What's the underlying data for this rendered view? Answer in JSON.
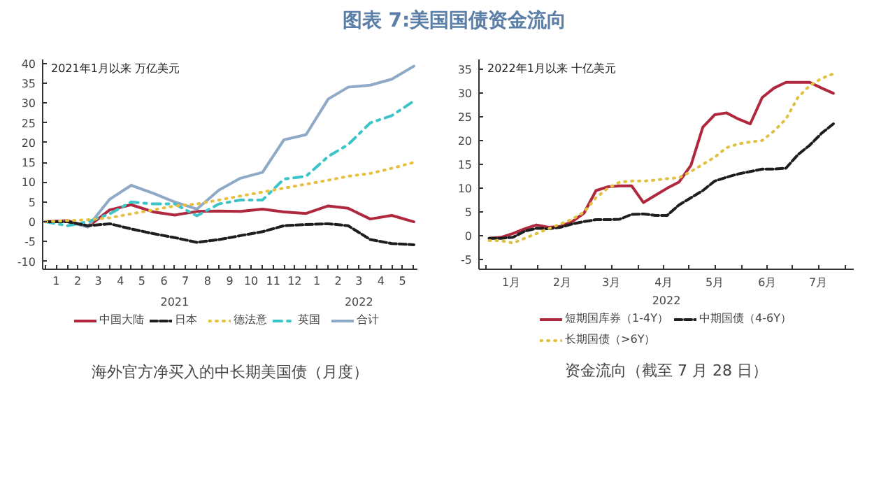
{
  "chart_data": [
    {
      "type": "line",
      "title": "图表 7:美国国债资金流向",
      "ylabel": "2021年1月以来 万亿美元",
      "annotations": [
        "海外官方净买入的中长期美国债（月度）"
      ],
      "x2lim": [
        "2020-12-28",
        "2022-06-06"
      ],
      "x2ticks": [
        {
          "value": "2021-07-01",
          "label": "2021"
        },
        {
          "value": "2022-03-16",
          "label": "2022"
        }
      ],
      "x": [
        "2021-01-01",
        "2021-02-01",
        "2021-03-01",
        "2021-04-01",
        "2021-05-01",
        "2021-06-01",
        "2021-07-01",
        "2021-08-01",
        "2021-09-01",
        "2021-10-01",
        "2021-11-01",
        "2021-12-01",
        "2022-01-01",
        "2022-02-01",
        "2022-03-01",
        "2022-04-01",
        "2022-05-01",
        "2022-06-01"
      ],
      "xlim": [
        "2020-12-28",
        "2022-06-06"
      ],
      "xticks": [
        {
          "value": "2021-01-01",
          "label": null
        },
        {
          "value": "2021-01-16",
          "label": "1"
        },
        {
          "value": "2021-02-01",
          "label": null
        },
        {
          "value": "2021-02-15",
          "label": "2"
        },
        {
          "value": "2021-03-01",
          "label": null
        },
        {
          "value": "2021-03-16",
          "label": "3"
        },
        {
          "value": "2021-04-01",
          "label": null
        },
        {
          "value": "2021-04-16",
          "label": "4"
        },
        {
          "value": "2021-05-01",
          "label": null
        },
        {
          "value": "2021-05-16",
          "label": "5"
        },
        {
          "value": "2021-06-01",
          "label": null
        },
        {
          "value": "2021-06-16",
          "label": "6"
        },
        {
          "value": "2021-07-01",
          "label": null
        },
        {
          "value": "2021-07-16",
          "label": "7"
        },
        {
          "value": "2021-08-01",
          "label": null
        },
        {
          "value": "2021-08-16",
          "label": "8"
        },
        {
          "value": "2021-09-01",
          "label": null
        },
        {
          "value": "2021-09-16",
          "label": "9"
        },
        {
          "value": "2021-10-01",
          "label": null
        },
        {
          "value": "2021-10-16",
          "label": "10"
        },
        {
          "value": "2021-11-01",
          "label": null
        },
        {
          "value": "2021-11-16",
          "label": "11"
        },
        {
          "value": "2021-12-01",
          "label": null
        },
        {
          "value": "2021-12-16",
          "label": "12"
        },
        {
          "value": "2022-01-01",
          "label": null
        },
        {
          "value": "2022-01-16",
          "label": "1"
        },
        {
          "value": "2022-02-01",
          "label": null
        },
        {
          "value": "2022-02-15",
          "label": "2"
        },
        {
          "value": "2022-03-01",
          "label": null
        },
        {
          "value": "2022-03-16",
          "label": "3"
        },
        {
          "value": "2022-04-01",
          "label": null
        },
        {
          "value": "2022-04-16",
          "label": "4"
        },
        {
          "value": "2022-05-01",
          "label": null
        },
        {
          "value": "2022-05-16",
          "label": "5"
        },
        {
          "value": "2022-06-01",
          "label": null
        }
      ],
      "ylim": [
        -12,
        41
      ],
      "yticks": [
        -10,
        -5,
        0,
        5,
        10,
        15,
        20,
        25,
        30,
        35,
        40
      ],
      "grid": false,
      "legend": "bottom",
      "series": [
        {
          "name": "中国大陆",
          "color": "#b0283e",
          "line_style": "solid",
          "values": [
            0,
            0.3,
            -1.3,
            3.0,
            4.3,
            2.5,
            1.7,
            2.6,
            2.7,
            2.6,
            3.2,
            2.5,
            2.1,
            4.0,
            3.4,
            0.7,
            1.6,
            0
          ]
        },
        {
          "name": "日本",
          "color": "#1e1e1e",
          "line_style": "dashed",
          "values": [
            0,
            0,
            -1,
            -0.5,
            -1.8,
            -3,
            -4,
            -5.2,
            -4.5,
            -3.5,
            -2.5,
            -1,
            -0.7,
            -0.5,
            -1,
            -4.5,
            -5.5,
            -5.8
          ]
        },
        {
          "name": "德法意",
          "color": "#e8c040",
          "line_style": "dotted",
          "values": [
            0,
            0.3,
            0.5,
            1,
            2,
            3,
            4,
            4.5,
            5.5,
            6.5,
            7.5,
            8.5,
            9.5,
            10.5,
            11.5,
            12.2,
            13.5,
            15
          ]
        },
        {
          "name": "英国",
          "color": "#3cc4c8",
          "line_style": "dashdot",
          "values": [
            0,
            -1,
            0,
            2,
            5,
            4.5,
            4.5,
            1.5,
            4.5,
            5.5,
            5.5,
            10.8,
            11.5,
            16.5,
            19.5,
            25,
            26.8,
            30.5
          ]
        },
        {
          "name": "合计",
          "color": "#8eaac6",
          "line_style": "solid",
          "values": [
            0,
            0,
            -1.3,
            5.7,
            9.2,
            7.2,
            5.0,
            3.2,
            8.0,
            11.0,
            12.5,
            20.7,
            22.0,
            31.0,
            34.0,
            34.5,
            36.0,
            39.3
          ]
        }
      ]
    },
    {
      "type": "line",
      "ylabel": "2022年1月以来 十亿美元",
      "xlabel": "2022",
      "annotations": [
        "资金流向（截至 7 月 28 日）"
      ],
      "x": [
        "2022-01-03",
        "2022-01-10",
        "2022-01-17",
        "2022-01-24",
        "2022-01-31",
        "2022-02-07",
        "2022-02-14",
        "2022-02-21",
        "2022-02-28",
        "2022-03-07",
        "2022-03-14",
        "2022-03-21",
        "2022-03-28",
        "2022-04-04",
        "2022-04-11",
        "2022-04-18",
        "2022-04-25",
        "2022-05-02",
        "2022-05-09",
        "2022-05-16",
        "2022-05-23",
        "2022-05-30",
        "2022-06-06",
        "2022-06-13",
        "2022-06-20",
        "2022-06-27",
        "2022-07-04",
        "2022-07-11",
        "2022-07-18",
        "2022-07-25"
      ],
      "xlim": [
        "2021-12-28",
        "2022-08-06"
      ],
      "xticks": [
        {
          "value": "2022-01-01",
          "label": null
        },
        {
          "value": "2022-01-16",
          "label": "1月"
        },
        {
          "value": "2022-02-01",
          "label": null
        },
        {
          "value": "2022-02-15",
          "label": "2月"
        },
        {
          "value": "2022-03-01",
          "label": null
        },
        {
          "value": "2022-03-16",
          "label": "3月"
        },
        {
          "value": "2022-04-01",
          "label": null
        },
        {
          "value": "2022-04-16",
          "label": "4月"
        },
        {
          "value": "2022-05-01",
          "label": null
        },
        {
          "value": "2022-05-16",
          "label": "5月"
        },
        {
          "value": "2022-06-01",
          "label": null
        },
        {
          "value": "2022-06-16",
          "label": "6月"
        },
        {
          "value": "2022-07-01",
          "label": null
        },
        {
          "value": "2022-07-16",
          "label": "7月"
        },
        {
          "value": "2022-08-01",
          "label": null
        }
      ],
      "ylim": [
        -7,
        37
      ],
      "yticks": [
        -5,
        0,
        5,
        10,
        15,
        20,
        25,
        30,
        35
      ],
      "grid": false,
      "legend": "bottom",
      "series": [
        {
          "name": "短期国库券（1-4Y）",
          "color": "#b0283e",
          "line_style": "solid",
          "values": [
            -0.5,
            -0.3,
            0.5,
            1.5,
            2.3,
            1.8,
            2.0,
            3.0,
            4.8,
            9.5,
            10.3,
            10.5,
            10.5,
            7.0,
            8.5,
            10.0,
            11.3,
            14.8,
            22.8,
            25.4,
            25.8,
            24.5,
            23.5,
            29.0,
            31.0,
            32.2,
            32.2,
            32.2,
            31.0,
            29.9
          ]
        },
        {
          "name": "中期国债（4-6Y）",
          "color": "#1e1e1e",
          "line_style": "dashed",
          "values": [
            -0.5,
            -0.5,
            -0.3,
            1.0,
            1.6,
            1.5,
            1.8,
            2.5,
            3.0,
            3.4,
            3.4,
            3.5,
            4.5,
            4.6,
            4.3,
            4.3,
            6.5,
            8.0,
            9.5,
            11.5,
            12.3,
            13.0,
            13.5,
            14.0,
            14.0,
            14.2,
            17.0,
            19.0,
            21.5,
            23.5
          ]
        },
        {
          "name": "长期国债（>6Y）",
          "color": "#e0c040",
          "line_style": "dotted",
          "values": [
            -1,
            -1,
            -1.5,
            -0.5,
            0.5,
            1.5,
            2.5,
            3.5,
            5.0,
            8.0,
            10.0,
            11.3,
            11.5,
            11.5,
            11.7,
            12.0,
            12.2,
            13.5,
            15.0,
            16.5,
            18.5,
            19.3,
            19.7,
            20.0,
            22.0,
            24.5,
            29.0,
            31.5,
            33.0,
            34.0
          ]
        }
      ]
    }
  ]
}
